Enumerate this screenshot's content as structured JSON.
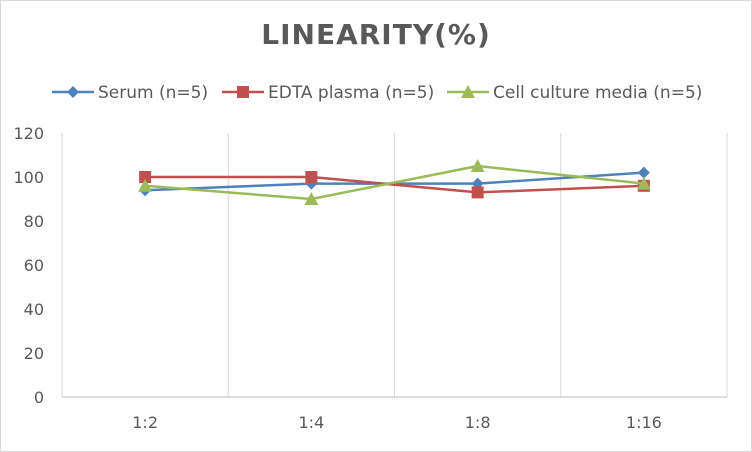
{
  "chart_data": {
    "type": "line",
    "title": "LINEARITY(%)",
    "categories": [
      "1:2",
      "1:4",
      "1:8",
      "1:16"
    ],
    "yticks": [
      "0",
      "20",
      "40",
      "60",
      "80",
      "100",
      "120"
    ],
    "ylim": [
      0,
      120
    ],
    "grid": "vertical",
    "legend_position": "top",
    "series": [
      {
        "name": "Serum (n=5)",
        "color": "#4f81bd",
        "marker": "diamond",
        "values": [
          94,
          97,
          97,
          102
        ]
      },
      {
        "name": "EDTA plasma (n=5)",
        "color": "#c0504d",
        "marker": "square",
        "values": [
          100,
          100,
          93,
          96
        ]
      },
      {
        "name": "Cell culture media (n=5)",
        "color": "#9bbb59",
        "marker": "triangle",
        "values": [
          96,
          90,
          105,
          97
        ]
      }
    ]
  }
}
